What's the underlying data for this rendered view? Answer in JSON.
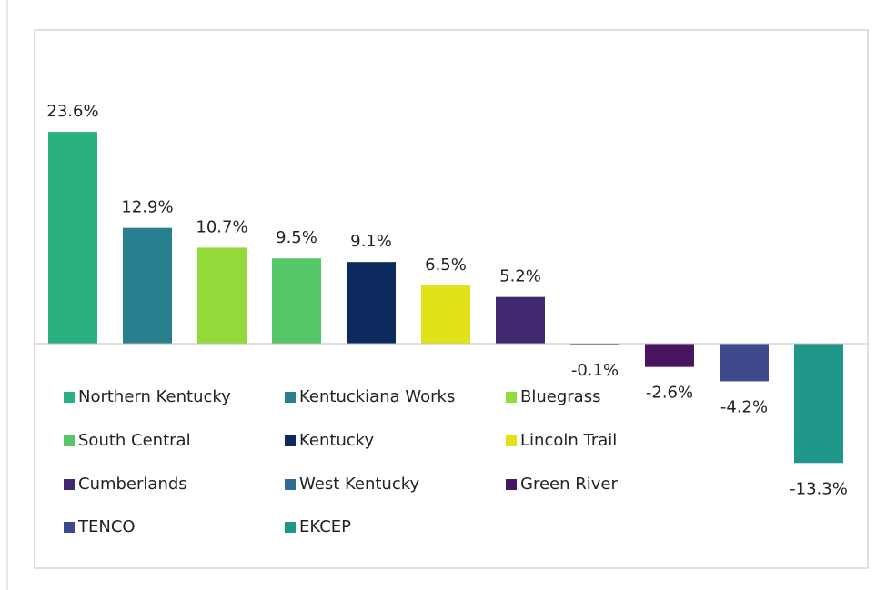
{
  "chart_data": {
    "type": "bar",
    "categories": [
      "Northern Kentucky",
      "Kentuckiana Works",
      "Bluegrass",
      "South Central",
      "Kentucky",
      "Lincoln Trail",
      "Cumberlands",
      "West Kentucky",
      "Green River",
      "TENCO",
      "EKCEP"
    ],
    "values": [
      23.6,
      12.9,
      10.7,
      9.5,
      9.1,
      6.5,
      5.2,
      -0.1,
      -2.6,
      -4.2,
      -13.3
    ],
    "value_labels": [
      "23.6%",
      "12.9%",
      "10.7%",
      "9.5%",
      "9.1%",
      "6.5%",
      "5.2%",
      "-0.1%",
      "-2.6%",
      "-4.2%",
      "-13.3%"
    ],
    "colors": [
      "#2bb07f",
      "#287f8e",
      "#93d93a",
      "#56c766",
      "#0c2a5e",
      "#e0e21a",
      "#40296e",
      "#2e6a91",
      "#4a1560",
      "#3d4a8c",
      "#1e9688"
    ],
    "legend": "inside"
  }
}
